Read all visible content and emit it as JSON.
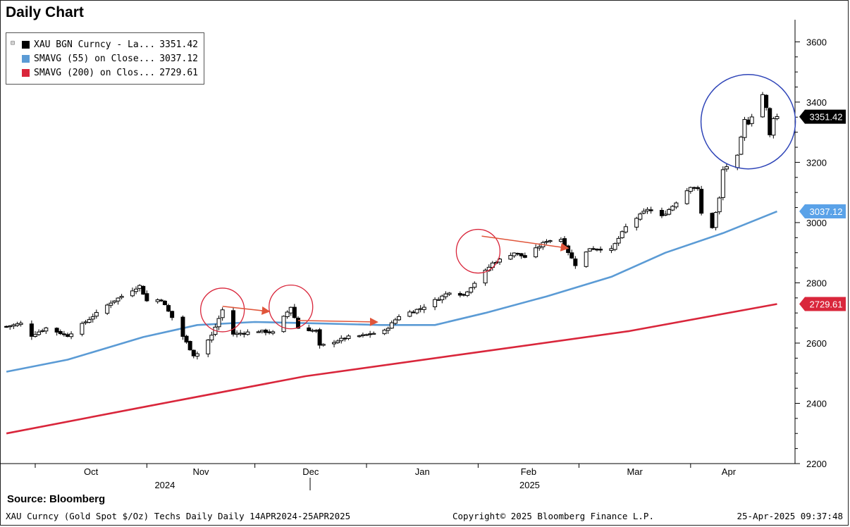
{
  "title": "Daily Chart",
  "legend": [
    {
      "name": "XAU BGN Curncy - La...",
      "value": "3351.42",
      "color": "#000000"
    },
    {
      "name": "SMAVG (55)  on Close...",
      "value": "3037.12",
      "color": "#5b9bd5"
    },
    {
      "name": "SMAVG (200)  on Clos...",
      "value": "2729.61",
      "color": "#d9263b"
    }
  ],
  "footer": {
    "source": "Source:  Bloomberg",
    "description": "XAU Curncy (Gold Spot  $/Oz) Techs Daily  Daily 14APR2024-25APR2025",
    "copyright": "Copyright© 2025 Bloomberg Finance L.P.",
    "timestamp": "25-Apr-2025 09:37:48"
  },
  "chart_data": {
    "type": "candlestick",
    "title": "Daily Chart",
    "ylim": [
      2200,
      3650
    ],
    "y_ticks": [
      "2200",
      "2400",
      "2600",
      "2800",
      "3000",
      "3200",
      "3400",
      "3600"
    ],
    "x_month_labels": [
      "Oct",
      "Nov",
      "Dec",
      "Jan",
      "Feb",
      "Mar",
      "Apr"
    ],
    "x_year_labels": [
      "2024",
      "2025"
    ],
    "last_price_labels": [
      {
        "text": "3351.42",
        "value": 3351.42,
        "color": "#000000"
      },
      {
        "text": "3037.12",
        "value": 3037.12,
        "color": "#5b9bd5"
      },
      {
        "text": "2729.61",
        "value": 2729.61,
        "color": "#d9263b"
      }
    ],
    "price_anchors": [
      [
        "2024-09-23",
        2655
      ],
      [
        "2024-09-27",
        2665
      ],
      [
        "2024-09-30",
        2625
      ],
      [
        "2024-10-04",
        2650
      ],
      [
        "2024-10-10",
        2625
      ],
      [
        "2024-10-16",
        2680
      ],
      [
        "2024-10-22",
        2735
      ],
      [
        "2024-10-30",
        2790
      ],
      [
        "2024-11-01",
        2740
      ],
      [
        "2024-11-05",
        2745
      ],
      [
        "2024-11-08",
        2685
      ],
      [
        "2024-11-14",
        2560
      ],
      [
        "2024-11-15",
        2565
      ],
      [
        "2024-11-19",
        2625
      ],
      [
        "2024-11-22",
        2710
      ],
      [
        "2024-11-25",
        2630
      ],
      [
        "2024-12-02",
        2640
      ],
      [
        "2024-12-06",
        2635
      ],
      [
        "2024-12-11",
        2720
      ],
      [
        "2024-12-13",
        2650
      ],
      [
        "2024-12-18",
        2640
      ],
      [
        "2024-12-19",
        2590
      ],
      [
        "2024-12-27",
        2620
      ],
      [
        "2024-12-31",
        2625
      ],
      [
        "2025-01-06",
        2640
      ],
      [
        "2025-01-10",
        2690
      ],
      [
        "2025-01-16",
        2715
      ],
      [
        "2025-01-22",
        2755
      ],
      [
        "2025-01-24",
        2770
      ],
      [
        "2025-01-28",
        2760
      ],
      [
        "2025-01-31",
        2800
      ],
      [
        "2025-02-05",
        2865
      ],
      [
        "2025-02-11",
        2900
      ],
      [
        "2025-02-14",
        2885
      ],
      [
        "2025-02-20",
        2940
      ],
      [
        "2025-02-24",
        2945
      ],
      [
        "2025-02-28",
        2860
      ],
      [
        "2025-03-04",
        2915
      ],
      [
        "2025-03-10",
        2910
      ],
      [
        "2025-03-14",
        2985
      ],
      [
        "2025-03-20",
        3045
      ],
      [
        "2025-03-24",
        3020
      ],
      [
        "2025-03-27",
        3055
      ],
      [
        "2025-04-01",
        3120
      ],
      [
        "2025-04-03",
        3110
      ],
      [
        "2025-04-04",
        3030
      ],
      [
        "2025-04-07",
        2985
      ],
      [
        "2025-04-09",
        3080
      ],
      [
        "2025-04-10",
        3175
      ],
      [
        "2025-04-14",
        3220
      ],
      [
        "2025-04-16",
        3340
      ],
      [
        "2025-04-17",
        3330
      ],
      [
        "2025-04-21",
        3425
      ],
      [
        "2025-04-22",
        3380
      ],
      [
        "2025-04-23",
        3290
      ],
      [
        "2025-04-24",
        3348
      ],
      [
        "2025-04-25",
        3351.42
      ]
    ],
    "series": [
      {
        "name": "XAU BGN Curncy - La...",
        "color": "#000000",
        "last": 3351.42
      },
      {
        "name": "SMAVG (55)  on Close...",
        "color": "#5b9bd5",
        "last": 3037.12,
        "points": [
          [
            "2024-09-23",
            2505
          ],
          [
            "2024-10-10",
            2545
          ],
          [
            "2024-10-31",
            2620
          ],
          [
            "2024-11-15",
            2660
          ],
          [
            "2024-12-01",
            2670
          ],
          [
            "2024-12-20",
            2665
          ],
          [
            "2025-01-05",
            2660
          ],
          [
            "2025-01-20",
            2660
          ],
          [
            "2025-02-03",
            2700
          ],
          [
            "2025-02-20",
            2755
          ],
          [
            "2025-03-10",
            2820
          ],
          [
            "2025-03-25",
            2900
          ],
          [
            "2025-04-10",
            2965
          ],
          [
            "2025-04-25",
            3037.12
          ]
        ]
      },
      {
        "name": "SMAVG (200)  on Clos...",
        "color": "#d9263b",
        "last": 2729.61,
        "points": [
          [
            "2024-09-23",
            2300
          ],
          [
            "2024-11-01",
            2390
          ],
          [
            "2024-12-15",
            2490
          ],
          [
            "2025-02-01",
            2570
          ],
          [
            "2025-03-15",
            2640
          ],
          [
            "2025-04-25",
            2729.61
          ]
        ]
      }
    ],
    "annotations": {
      "red_circles": [
        [
          "2024-11-22",
          2710
        ],
        [
          "2024-12-11",
          2720
        ],
        [
          "2025-02-01",
          2905
        ]
      ],
      "red_arrows": [
        [
          [
            "2024-11-22",
            2722
          ],
          [
            "2024-12-05",
            2705
          ]
        ],
        [
          [
            "2024-12-13",
            2675
          ],
          [
            "2025-01-04",
            2670
          ]
        ],
        [
          [
            "2025-02-02",
            2955
          ],
          [
            "2025-02-26",
            2915
          ]
        ]
      ],
      "blue_circle": [
        "2025-04-17",
        3335
      ]
    }
  }
}
